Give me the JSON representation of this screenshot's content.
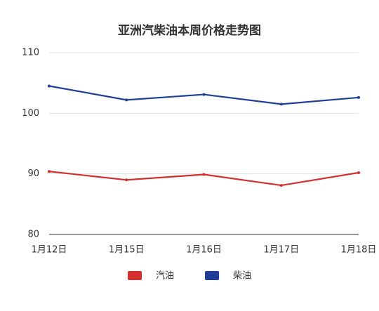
{
  "chart_data": {
    "type": "line",
    "title": "亚洲汽柴油本周价格走势图",
    "categories": [
      "1月12日",
      "1月15日",
      "1月16日",
      "1月17日",
      "1月18日"
    ],
    "series": [
      {
        "name": "汽油",
        "color": "#d32f2f",
        "values": [
          90.4,
          89.0,
          89.9,
          88.1,
          90.2
        ]
      },
      {
        "name": "柴油",
        "color": "#1e3f95",
        "values": [
          104.5,
          102.2,
          103.1,
          101.5,
          102.6
        ]
      }
    ],
    "ylim": [
      80,
      110
    ],
    "yticks": [
      80,
      90,
      100,
      110
    ],
    "grid": true
  }
}
